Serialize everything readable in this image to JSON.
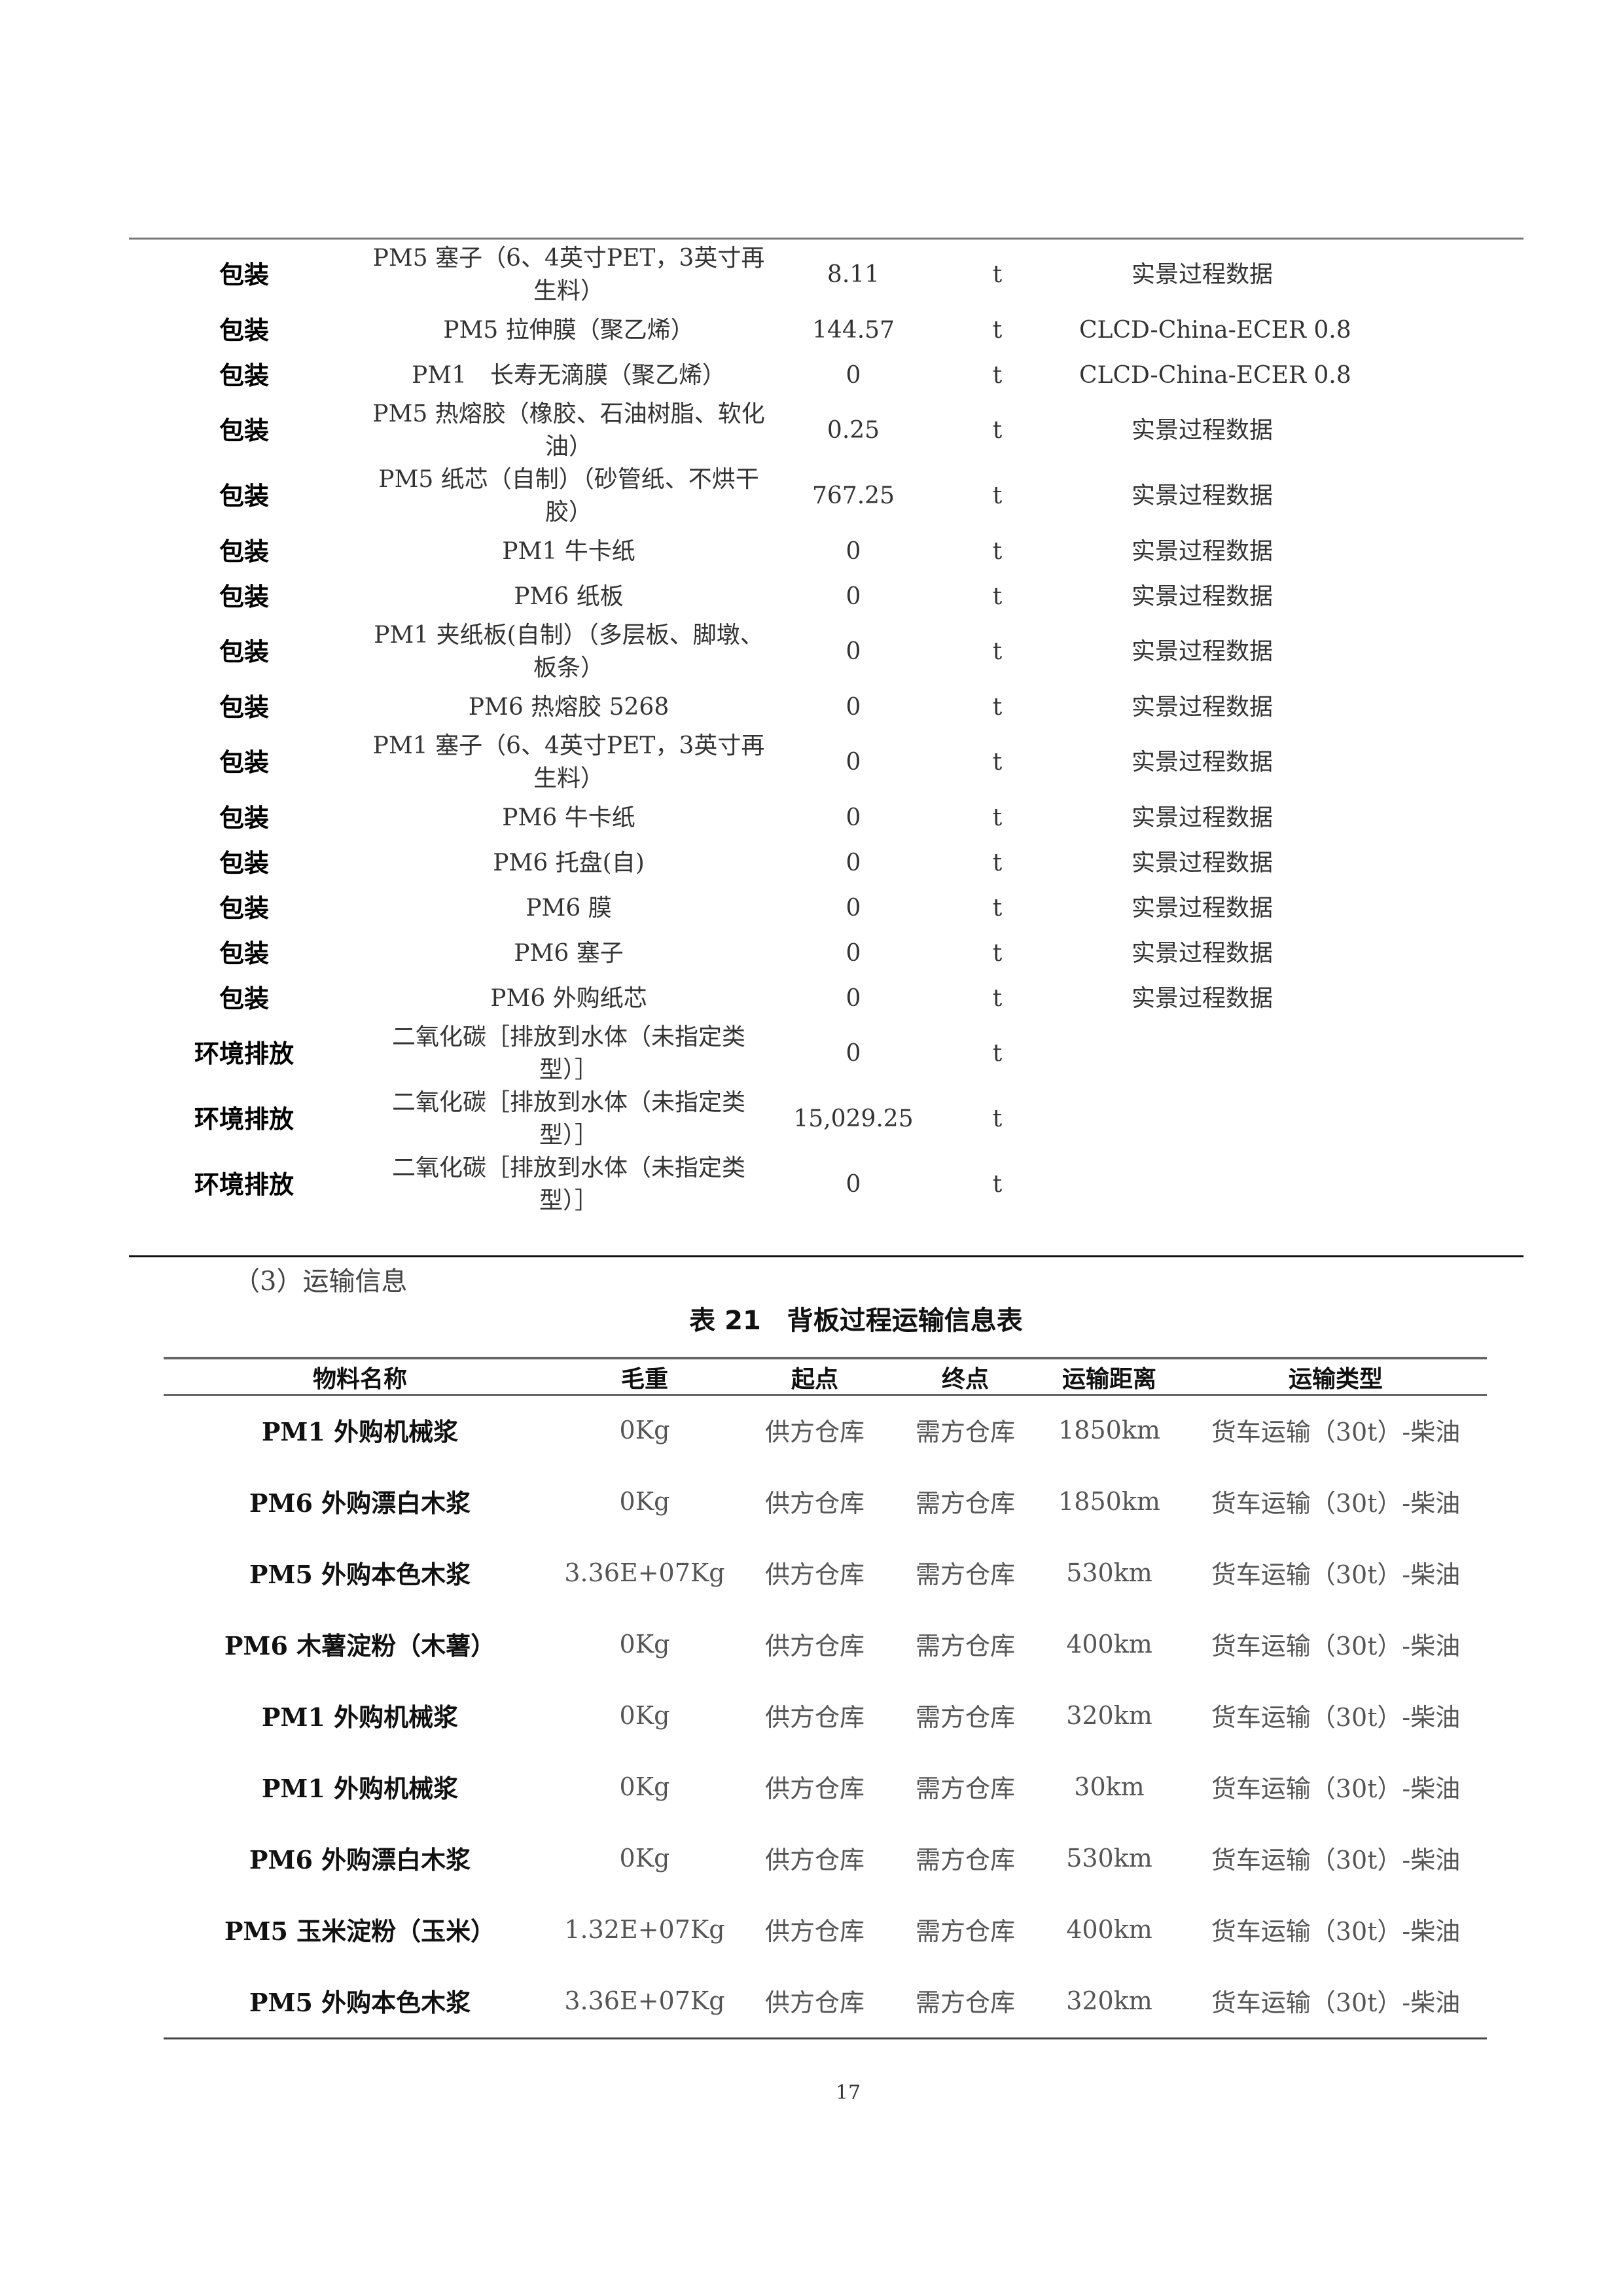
{
  "inventory_rows": [
    {
      "category": "包装",
      "name": "PM5 塞子（6、4英寸PET，3英寸再生料）",
      "amount": "8.11",
      "unit": "t",
      "source": "实景过程数据"
    },
    {
      "category": "包装",
      "name": "PM5 拉伸膜（聚乙烯）",
      "amount": "144.57",
      "unit": "t",
      "source": "CLCD-China-ECER 0.8"
    },
    {
      "category": "包装",
      "name": "PM1　长寿无滴膜（聚乙烯）",
      "amount": "0",
      "unit": "t",
      "source": "CLCD-China-ECER 0.8"
    },
    {
      "category": "包装",
      "name": "PM5 热熔胶（橡胶、石油树脂、软化油）",
      "amount": "0.25",
      "unit": "t",
      "source": "实景过程数据"
    },
    {
      "category": "包装",
      "name": "PM5 纸芯（自制）（砂管纸、不烘干胶）",
      "amount": "767.25",
      "unit": "t",
      "source": "实景过程数据"
    },
    {
      "category": "包装",
      "name": "PM1 牛卡纸",
      "amount": "0",
      "unit": "t",
      "source": "实景过程数据"
    },
    {
      "category": "包装",
      "name": "PM6 纸板",
      "amount": "0",
      "unit": "t",
      "source": "实景过程数据"
    },
    {
      "category": "包装",
      "name": "PM1 夹纸板(自制）（多层板、脚墩、板条）",
      "amount": "0",
      "unit": "t",
      "source": "实景过程数据"
    },
    {
      "category": "包装",
      "name": "PM6 热熔胶 5268",
      "amount": "0",
      "unit": "t",
      "source": "实景过程数据"
    },
    {
      "category": "包装",
      "name": "PM1 塞子（6、4英寸PET，3英寸再生料）",
      "amount": "0",
      "unit": "t",
      "source": "实景过程数据"
    },
    {
      "category": "包装",
      "name": "PM6 牛卡纸",
      "amount": "0",
      "unit": "t",
      "source": "实景过程数据"
    },
    {
      "category": "包装",
      "name": "PM6 托盘(自)",
      "amount": "0",
      "unit": "t",
      "source": "实景过程数据"
    },
    {
      "category": "包装",
      "name": "PM6 膜",
      "amount": "0",
      "unit": "t",
      "source": "实景过程数据"
    },
    {
      "category": "包装",
      "name": "PM6 塞子",
      "amount": "0",
      "unit": "t",
      "source": "实景过程数据"
    },
    {
      "category": "包装",
      "name": "PM6 外购纸芯",
      "amount": "0",
      "unit": "t",
      "source": "实景过程数据"
    },
    {
      "category": "环境排放",
      "name": "二氧化碳［排放到水体（未指定类型）］",
      "amount": "0",
      "unit": "t",
      "source": ""
    },
    {
      "category": "环境排放",
      "name": "二氧化碳［排放到水体（未指定类型）］",
      "amount": "15,029.25",
      "unit": "t",
      "source": ""
    },
    {
      "category": "环境排放",
      "name": "二氧化碳［排放到水体（未指定类型）］",
      "amount": "0",
      "unit": "t",
      "source": ""
    }
  ],
  "section_heading": "（3）运输信息",
  "table_caption": "表 21　背板过程运输信息表",
  "transport_table": {
    "headers": [
      "物料名称",
      "毛重",
      "起点",
      "终点",
      "运输距离",
      "运输类型"
    ],
    "rows": [
      [
        "PM1 外购机械浆",
        "0Kg",
        "供方仓库",
        "需方仓库",
        "1850km",
        "货车运输（30t）-柴油"
      ],
      [
        "PM6 外购漂白木浆",
        "0Kg",
        "供方仓库",
        "需方仓库",
        "1850km",
        "货车运输（30t）-柴油"
      ],
      [
        "PM5 外购本色木浆",
        "3.36E+07Kg",
        "供方仓库",
        "需方仓库",
        "530km",
        "货车运输（30t）-柴油"
      ],
      [
        "PM6 木薯淀粉（木薯）",
        "0Kg",
        "供方仓库",
        "需方仓库",
        "400km",
        "货车运输（30t）-柴油"
      ],
      [
        "PM1 外购机械浆",
        "0Kg",
        "供方仓库",
        "需方仓库",
        "320km",
        "货车运输（30t）-柴油"
      ],
      [
        "PM1 外购机械浆",
        "0Kg",
        "供方仓库",
        "需方仓库",
        "30km",
        "货车运输（30t）-柴油"
      ],
      [
        "PM6 外购漂白木浆",
        "0Kg",
        "供方仓库",
        "需方仓库",
        "530km",
        "货车运输（30t）-柴油"
      ],
      [
        "PM5 玉米淀粉（玉米）",
        "1.32E+07Kg",
        "供方仓库",
        "需方仓库",
        "400km",
        "货车运输（30t）-柴油"
      ],
      [
        "PM5 外购本色木浆",
        "3.36E+07Kg",
        "供方仓库",
        "需方仓库",
        "320km",
        "货车运输（30t）-柴油"
      ]
    ]
  },
  "page_number": "17"
}
